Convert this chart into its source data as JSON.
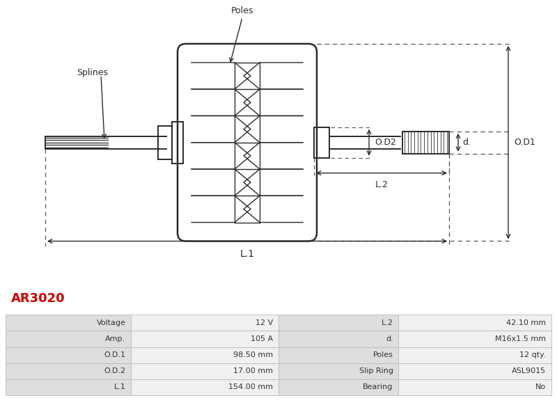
{
  "title_code": "AR3020",
  "title_color": "#cc0000",
  "bg_color": "#ffffff",
  "table_data": [
    [
      "Voltage",
      "12 V",
      "L.2",
      "42.10 mm"
    ],
    [
      "Amp.",
      "105 A",
      "d.",
      "M16x1.5 mm"
    ],
    [
      "O.D.1",
      "98.50 mm",
      "Poles",
      "12 qty."
    ],
    [
      "O.D.2",
      "17.00 mm",
      "Slip Ring",
      "ASL9015"
    ],
    [
      "L.1",
      "154.00 mm",
      "Bearing",
      "No"
    ]
  ],
  "diagram_labels": {
    "poles": "Poles",
    "splines": "Splines",
    "od1": "O.D1",
    "od2": "O.D2",
    "d": "d.",
    "l1": "L.1",
    "l2": "L.2"
  },
  "line_color": "#2a2a2a",
  "dot_line_color": "#555555"
}
